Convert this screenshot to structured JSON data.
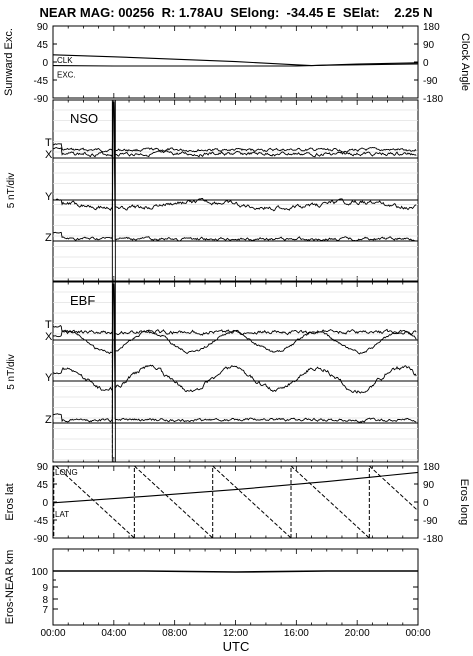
{
  "header": {
    "title": "NEAR MAG: 00256  R: 1.78AU  SElong:  -34.45 E  SElat:    2.25 N"
  },
  "chart_data": [
    {
      "id": "panel1",
      "type": "line",
      "ylabel_left": "Sunward Exc.",
      "ylabel_right": "Clock Angle",
      "ticks_left": [
        "90",
        "45",
        "0",
        "-45",
        "-90"
      ],
      "ticks_right": [
        "180",
        "90",
        "0",
        "-90",
        "-180"
      ],
      "ylim_left": [
        -90,
        90
      ],
      "ylim_right": [
        -180,
        180
      ],
      "series": [
        {
          "name": "CLK",
          "axis": "right",
          "x": [
            0,
            4,
            8,
            12,
            16,
            17,
            20,
            24
          ],
          "values": [
            36,
            26,
            14,
            2,
            -14,
            -18,
            -10,
            -4
          ]
        },
        {
          "name": "EXC.",
          "axis": "left",
          "x": [
            0,
            4,
            8,
            12,
            16,
            18,
            20,
            24
          ],
          "values": [
            -9,
            -10,
            -10,
            -10,
            -10,
            -8,
            -7,
            -5
          ]
        }
      ]
    },
    {
      "id": "panel2",
      "type": "line",
      "label": "NSO",
      "ylabel": "5 nT/div",
      "traces": [
        {
          "name": "T",
          "label": "T",
          "baseline": 158,
          "offset": -8,
          "noise": 1.0,
          "period_h": 0,
          "amp": 0,
          "spike_h": 4.0
        },
        {
          "name": "X",
          "label": "X",
          "baseline": 158,
          "offset": -4,
          "noise": 1.2,
          "period_h": 0,
          "amp": 0,
          "spike_h": 4.0
        },
        {
          "name": "Y",
          "label": "Y",
          "baseline": 200,
          "offset": 5,
          "noise": 1.4,
          "period_h": 10,
          "amp": 3,
          "spike_h": 4.0
        },
        {
          "name": "Z",
          "label": "Z",
          "baseline": 241,
          "offset": -2,
          "noise": 1.0,
          "period_h": 0,
          "amp": 0,
          "spike_h": 4.0
        }
      ]
    },
    {
      "id": "panel3",
      "type": "line",
      "label": "EBF",
      "ylabel": "5 nT/div",
      "traces": [
        {
          "name": "T",
          "label": "T",
          "baseline": 340,
          "offset": -8,
          "noise": 1.3,
          "period_h": 0,
          "amp": 0,
          "spike_h": 4.0
        },
        {
          "name": "X",
          "label": "X",
          "baseline": 340,
          "offset": 2,
          "noise": 1.0,
          "period_h": 5.5,
          "amp": 10,
          "spike_h": 4.0
        },
        {
          "name": "Y",
          "label": "Y",
          "baseline": 381,
          "offset": -2,
          "noise": 1.5,
          "period_h": 5.5,
          "amp": 11,
          "spike_h": 4.0
        },
        {
          "name": "Z",
          "label": "Z",
          "baseline": 423,
          "offset": -3,
          "noise": 1.0,
          "period_h": 0,
          "amp": 0,
          "spike_h": 4.0
        }
      ]
    },
    {
      "id": "panel4",
      "type": "line",
      "ylabel_left": "Eros lat",
      "ylabel_right": "Eros long",
      "ticks_left": [
        "90",
        "45",
        "0",
        "-45",
        "-90"
      ],
      "ticks_right": [
        "180",
        "90",
        "0",
        "-90",
        "-180"
      ],
      "ylim_left": [
        -90,
        90
      ],
      "ylim_right": [
        -180,
        180
      ],
      "series": [
        {
          "name": "LONG",
          "axis": "right",
          "style": "dashed",
          "sawtooth_starts_h": [
            0.2,
            5.35,
            10.5,
            15.65,
            20.8
          ],
          "period_h": 5.15,
          "range": [
            180,
            -180
          ]
        },
        {
          "name": "LAT",
          "axis": "left",
          "style": "solid",
          "x": [
            0,
            6,
            12,
            18,
            24
          ],
          "values": [
            -2,
            14,
            31,
            51,
            74
          ]
        }
      ]
    },
    {
      "id": "panel5",
      "type": "line",
      "ylabel": "Eros-NEAR km",
      "ticks": [
        "100",
        "9",
        "8",
        "7"
      ],
      "series": [
        {
          "name": "range",
          "x": [
            0,
            6,
            12,
            18,
            24
          ],
          "values": [
            100,
            100,
            100,
            100,
            100
          ]
        }
      ]
    }
  ],
  "xaxis": {
    "label": "UTC",
    "ticks": [
      "00:00",
      "04:00",
      "08:00",
      "12:00",
      "16:00",
      "20:00",
      "00:00"
    ],
    "range_h": [
      0,
      24
    ]
  }
}
